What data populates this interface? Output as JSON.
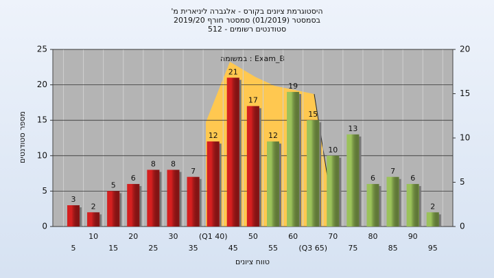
{
  "chart_data": {
    "type": "bar",
    "title": [
      "היסטוגרמת ציונים בקורס - אלגברה ליניארית מ'",
      "בסמסטר (01/2019) סמסטר חורף 2019/20",
      "סטודנטים רשומים - 512"
    ],
    "annotation": "במשומה : Exam_B",
    "y_label": "מספר סטודנטים",
    "x_label": "טווח ציונים",
    "categories": [
      "5",
      "10",
      "15",
      "20",
      "25",
      "30",
      "35",
      "(Q1 40)",
      "45",
      "50",
      "55",
      "60",
      "(Q3 65)",
      "70",
      "75",
      "80",
      "85",
      "90",
      "95"
    ],
    "values": [
      3,
      2,
      5,
      6,
      8,
      8,
      7,
      12,
      21,
      17,
      12,
      19,
      15,
      10,
      13,
      6,
      7,
      6,
      2
    ],
    "colors": [
      "#d42020",
      "#d42020",
      "#d42020",
      "#d42020",
      "#d42020",
      "#d42020",
      "#d42020",
      "#d42020",
      "#d42020",
      "#d42020",
      "#9bc25a",
      "#9bc25a",
      "#9bc25a",
      "#9bc25a",
      "#9bc25a",
      "#9bc25a",
      "#9bc25a",
      "#9bc25a",
      "#9bc25a"
    ],
    "ylim": [
      0,
      25
    ],
    "yticks": [
      0,
      5,
      10,
      15,
      20,
      25
    ],
    "y2lim": [
      0,
      20
    ],
    "y2ticks": [
      0,
      5,
      10,
      15,
      20
    ],
    "grid": true
  }
}
